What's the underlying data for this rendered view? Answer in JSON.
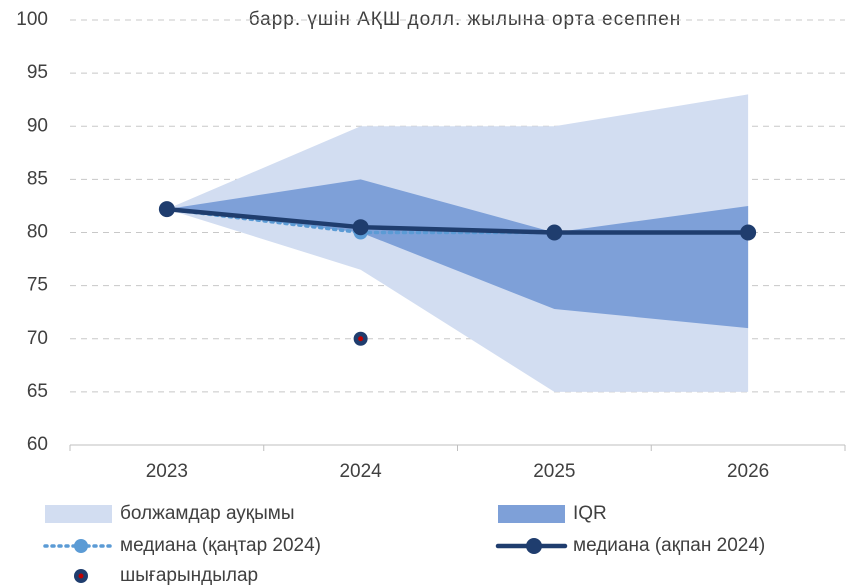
{
  "chart_data": {
    "type": "band-line",
    "title": "барр. үшін АҚШ долл. жылына орта есеппен",
    "categories": [
      "2023",
      "2024",
      "2025",
      "2026"
    ],
    "ylim": [
      60,
      100
    ],
    "yticks": [
      60,
      65,
      70,
      75,
      80,
      85,
      90,
      95,
      100
    ],
    "grid": true,
    "bands": [
      {
        "name": "болжамдар ауқымы",
        "color": "#d2ddf1",
        "lower": [
          82.2,
          76.5,
          65,
          65
        ],
        "upper": [
          82.2,
          90,
          90,
          93
        ]
      },
      {
        "name": "IQR",
        "color": "#7ea0d8",
        "lower": [
          82.2,
          80,
          72.8,
          71
        ],
        "upper": [
          82.2,
          85,
          80,
          82.5
        ]
      }
    ],
    "series": [
      {
        "name": "медиана (қаңтар 2024)",
        "color": "#5b9bd5",
        "dashed": true,
        "values": [
          82.2,
          80,
          80,
          80
        ]
      },
      {
        "name": "медиана (ақпан 2024)",
        "color": "#1f3d6e",
        "dashed": false,
        "values": [
          82.2,
          80.5,
          80,
          80
        ]
      }
    ],
    "outliers": {
      "name": "шығарындылар",
      "color": "#1f3d6e",
      "center_color": "#c00000",
      "categories": [
        "2024"
      ],
      "values": [
        70
      ]
    }
  }
}
